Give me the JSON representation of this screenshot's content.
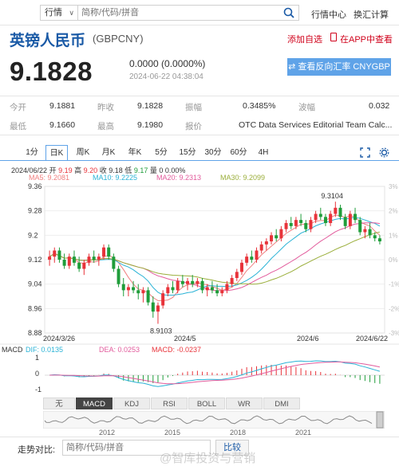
{
  "topbar": {
    "market_select": "行情",
    "search_placeholder": "简称/代码/拼音",
    "link_quote_center": "行情中心",
    "link_calculator": "换汇计算"
  },
  "header": {
    "name": "英镑人民币",
    "code": "(GBPCNY)",
    "add_fav": "添加自选",
    "in_app": "在APP中查看"
  },
  "quote": {
    "price": "9.1828",
    "change": "0.0000 (0.0000%)",
    "timestamp": "2024-06-22 04:38:04",
    "reverse_button": "查看反向汇率 CNYGBP"
  },
  "stats": {
    "open_label": "今开",
    "open": "9.1881",
    "prev_close_label": "昨收",
    "prev_close": "9.1828",
    "amplitude_label": "振幅",
    "amplitude": "0.3485%",
    "volatility_label": "波幅",
    "volatility": "0.032",
    "low_label": "最低",
    "low": "9.1660",
    "high_label": "最高",
    "high": "9.1980",
    "source_label": "报价",
    "source": "OTC Data Services Editorial Team Calc..."
  },
  "tabs": [
    "1分",
    "日K",
    "周K",
    "月K",
    "年K",
    "5分",
    "15分",
    "30分",
    "60分",
    "4H"
  ],
  "active_tab": "日K",
  "ohlc": {
    "date": "2024/06/22",
    "open_label": "开",
    "open": "9.19",
    "high_label": "高",
    "high": "9.20",
    "close_label": "收",
    "close": "9.18",
    "low_label": "低",
    "low": "9.17",
    "vol_label": "量",
    "vol": "0 0.00%"
  },
  "ma": {
    "ma5": "MA5: 9.2081",
    "ma10": "MA10: 9.2225",
    "ma20": "MA20: 9.2313",
    "ma30": "MA30: 9.2099"
  },
  "colors": {
    "up": "#e8333a",
    "down": "#1f9d3a",
    "ma5": "#f08080",
    "ma10": "#2bb3d6",
    "ma20": "#e25b9c",
    "ma30": "#9aae3a",
    "accent": "#5fa3e8"
  },
  "chart_data": {
    "type": "candlestick",
    "y_ticks": [
      "9.36",
      "9.28",
      "9.2",
      "9.12",
      "9.04",
      "8.96",
      "8.88"
    ],
    "pct_ticks": [
      "3%",
      "2%",
      "1%",
      "0%",
      "-1%",
      "-2%",
      "-3%"
    ],
    "x_labels": [
      "2024/3/26",
      "2024/5",
      "2024/6",
      "2024/6/22"
    ],
    "ylim": [
      8.88,
      9.36
    ],
    "high_annotation": "9.3104",
    "low_annotation": "8.9103",
    "candles": [
      [
        9.12,
        9.15,
        9.1,
        9.13
      ],
      [
        9.13,
        9.16,
        9.11,
        9.15
      ],
      [
        9.15,
        9.16,
        9.11,
        9.12
      ],
      [
        9.12,
        9.14,
        9.09,
        9.1
      ],
      [
        9.1,
        9.14,
        9.09,
        9.13
      ],
      [
        9.13,
        9.15,
        9.1,
        9.11
      ],
      [
        9.11,
        9.13,
        9.08,
        9.09
      ],
      [
        9.09,
        9.12,
        9.07,
        9.11
      ],
      [
        9.11,
        9.14,
        9.1,
        9.13
      ],
      [
        9.13,
        9.15,
        9.11,
        9.12
      ],
      [
        9.12,
        9.14,
        9.1,
        9.13
      ],
      [
        9.13,
        9.17,
        9.12,
        9.16
      ],
      [
        9.16,
        9.17,
        9.12,
        9.13
      ],
      [
        9.13,
        9.14,
        9.08,
        9.09
      ],
      [
        9.09,
        9.1,
        9.03,
        9.04
      ],
      [
        9.04,
        9.06,
        9.0,
        9.02
      ],
      [
        9.02,
        9.04,
        9.0,
        9.03
      ],
      [
        9.03,
        9.05,
        9.01,
        9.02
      ],
      [
        9.02,
        9.04,
        8.99,
        9.01
      ],
      [
        9.01,
        9.03,
        8.98,
        9.02
      ],
      [
        9.02,
        9.03,
        8.97,
        8.98
      ],
      [
        8.98,
        9.0,
        8.93,
        8.95
      ],
      [
        8.95,
        8.98,
        8.91,
        8.97
      ],
      [
        8.97,
        9.02,
        8.96,
        9.01
      ],
      [
        9.01,
        9.04,
        9.0,
        9.03
      ],
      [
        9.03,
        9.05,
        9.01,
        9.02
      ],
      [
        9.02,
        9.06,
        9.01,
        9.05
      ],
      [
        9.05,
        9.07,
        9.03,
        9.04
      ],
      [
        9.04,
        9.06,
        9.02,
        9.05
      ],
      [
        9.05,
        9.07,
        9.03,
        9.04
      ],
      [
        9.04,
        9.06,
        9.03,
        9.05
      ],
      [
        9.05,
        9.06,
        9.01,
        9.02
      ],
      [
        9.02,
        9.04,
        9.0,
        9.03
      ],
      [
        9.03,
        9.05,
        9.01,
        9.02
      ],
      [
        9.02,
        9.04,
        9.0,
        9.01
      ],
      [
        9.01,
        9.03,
        9.0,
        9.02
      ],
      [
        9.02,
        9.05,
        9.01,
        9.04
      ],
      [
        9.04,
        9.07,
        9.03,
        9.06
      ],
      [
        9.06,
        9.09,
        9.05,
        9.08
      ],
      [
        9.08,
        9.12,
        9.07,
        9.11
      ],
      [
        9.11,
        9.14,
        9.1,
        9.13
      ],
      [
        9.13,
        9.15,
        9.11,
        9.12
      ],
      [
        9.12,
        9.16,
        9.11,
        9.15
      ],
      [
        9.15,
        9.18,
        9.14,
        9.17
      ],
      [
        9.17,
        9.19,
        9.15,
        9.18
      ],
      [
        9.18,
        9.21,
        9.17,
        9.2
      ],
      [
        9.2,
        9.22,
        9.18,
        9.19
      ],
      [
        9.19,
        9.23,
        9.18,
        9.22
      ],
      [
        9.22,
        9.25,
        9.21,
        9.24
      ],
      [
        9.24,
        9.26,
        9.22,
        9.23
      ],
      [
        9.23,
        9.26,
        9.22,
        9.25
      ],
      [
        9.25,
        9.27,
        9.23,
        9.24
      ],
      [
        9.24,
        9.25,
        9.21,
        9.22
      ],
      [
        9.22,
        9.26,
        9.21,
        9.25
      ],
      [
        9.25,
        9.28,
        9.24,
        9.27
      ],
      [
        9.27,
        9.29,
        9.25,
        9.26
      ],
      [
        9.26,
        9.27,
        9.23,
        9.24
      ],
      [
        9.24,
        9.28,
        9.23,
        9.27
      ],
      [
        9.27,
        9.31,
        9.26,
        9.29
      ],
      [
        9.29,
        9.3,
        9.25,
        9.26
      ],
      [
        9.26,
        9.27,
        9.22,
        9.23
      ],
      [
        9.23,
        9.28,
        9.22,
        9.27
      ],
      [
        9.27,
        9.29,
        9.24,
        9.25
      ],
      [
        9.25,
        9.26,
        9.2,
        9.21
      ],
      [
        9.21,
        9.23,
        9.19,
        9.22
      ],
      [
        9.22,
        9.24,
        9.19,
        9.2
      ],
      [
        9.2,
        9.21,
        9.18,
        9.19
      ],
      [
        9.19,
        9.2,
        9.17,
        9.18
      ]
    ],
    "macd": {
      "label": "MACD",
      "dif": "DIF: 0.0135",
      "dea": "DEA: 0.0253",
      "macd": "MACD: -0.0237",
      "y_ticks": [
        "1",
        "0",
        "-1"
      ]
    }
  },
  "indicator_tabs": [
    "无",
    "MACD",
    "KDJ",
    "RSI",
    "BOLL",
    "WR",
    "DMI"
  ],
  "active_indicator": "MACD",
  "navigator_years": [
    "2012",
    "2015",
    "2018",
    "2021"
  ],
  "compare": {
    "label": "走势对比:",
    "placeholder": "简称/代码/拼音",
    "button": "比较"
  },
  "watermark": "@智库投资与营销"
}
